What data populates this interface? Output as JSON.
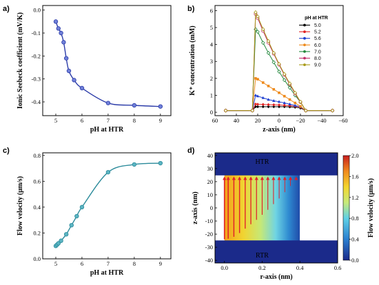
{
  "panels": {
    "a": "a)",
    "b": "b)",
    "c": "c)",
    "d": "d)"
  },
  "chart_data": [
    {
      "id": "a",
      "type": "line",
      "xlabel": "pH at HTR",
      "ylabel": "Ionic Seebeck coefficient (mV/K)",
      "xlim": [
        4.5,
        9.4
      ],
      "ylim": [
        -0.46,
        0.02
      ],
      "xticks": [
        5,
        6,
        7,
        8,
        9
      ],
      "yticks": [
        0.0,
        -0.1,
        -0.2,
        -0.3,
        -0.4
      ],
      "ytick_labels": [
        "0.0",
        "-0.1",
        "-0.2",
        "-0.3",
        "-0.4"
      ],
      "color": "#2b3ba8",
      "x": [
        5.0,
        5.1,
        5.2,
        5.3,
        5.4,
        5.5,
        5.7,
        6.0,
        7.0,
        8.0,
        9.0
      ],
      "y": [
        -0.05,
        -0.08,
        -0.1,
        -0.14,
        -0.21,
        -0.265,
        -0.305,
        -0.34,
        -0.405,
        -0.415,
        -0.42
      ]
    },
    {
      "id": "b",
      "type": "line",
      "xlabel": "z-axis (nm)",
      "ylabel": "K⁺ concentration (mM)",
      "xlim": [
        60,
        -60
      ],
      "ylim": [
        -0.2,
        6.3
      ],
      "xticks": [
        60,
        40,
        20,
        0,
        -20,
        -40,
        -60
      ],
      "xtick_labels": [
        "60",
        "40",
        "20",
        "0",
        "−20",
        "−40",
        "−60"
      ],
      "yticks": [
        0,
        1,
        2,
        3,
        4,
        5,
        6
      ],
      "legend_title": "pH at HTR",
      "legend_position": "top-right",
      "series": [
        {
          "name": "5.0",
          "color": "#000000",
          "x": [
            50,
            25,
            22,
            20,
            15,
            10,
            5,
            0,
            -5,
            -10,
            -15,
            -20,
            -25,
            -50
          ],
          "y": [
            0.1,
            0.1,
            0.33,
            0.33,
            0.33,
            0.33,
            0.33,
            0.33,
            0.33,
            0.32,
            0.3,
            0.25,
            0.1,
            0.1
          ]
        },
        {
          "name": "5.2",
          "color": "#e02020",
          "x": [
            50,
            25,
            22,
            20,
            15,
            10,
            5,
            0,
            -5,
            -10,
            -15,
            -20,
            -25,
            -50
          ],
          "y": [
            0.1,
            0.1,
            0.48,
            0.47,
            0.46,
            0.45,
            0.44,
            0.43,
            0.41,
            0.39,
            0.36,
            0.3,
            0.1,
            0.1
          ]
        },
        {
          "name": "5.6",
          "color": "#1f3fd0",
          "x": [
            50,
            25,
            22,
            20,
            15,
            10,
            5,
            0,
            -5,
            -10,
            -15,
            -20,
            -25,
            -50
          ],
          "y": [
            0.1,
            0.1,
            1.0,
            0.95,
            0.85,
            0.75,
            0.68,
            0.62,
            0.55,
            0.48,
            0.4,
            0.32,
            0.1,
            0.1
          ]
        },
        {
          "name": "6.0",
          "color": "#ee8a1c",
          "x": [
            50,
            25,
            22,
            20,
            15,
            10,
            5,
            0,
            -5,
            -10,
            -15,
            -20,
            -25,
            -50
          ],
          "y": [
            0.1,
            0.1,
            2.0,
            1.95,
            1.75,
            1.55,
            1.35,
            1.15,
            0.95,
            0.75,
            0.55,
            0.35,
            0.1,
            0.1
          ]
        },
        {
          "name": "7.0",
          "color": "#23883c",
          "x": [
            50,
            25,
            22,
            20,
            15,
            10,
            5,
            0,
            -5,
            -10,
            -15,
            -20,
            -25,
            -50
          ],
          "y": [
            0.1,
            0.1,
            4.9,
            4.75,
            4.1,
            3.5,
            2.95,
            2.4,
            1.9,
            1.45,
            1.0,
            0.6,
            0.1,
            0.1
          ]
        },
        {
          "name": "8.0",
          "color": "#c0306a",
          "x": [
            50,
            25,
            22,
            20,
            15,
            10,
            5,
            0,
            -5,
            -10,
            -15,
            -20,
            -25,
            -50
          ],
          "y": [
            0.1,
            0.1,
            5.8,
            5.55,
            4.8,
            4.1,
            3.45,
            2.8,
            2.2,
            1.65,
            1.1,
            0.6,
            0.1,
            0.1
          ]
        },
        {
          "name": "9.0",
          "color": "#a89a18",
          "x": [
            50,
            25,
            22,
            20,
            15,
            10,
            5,
            0,
            -5,
            -10,
            -15,
            -20,
            -25,
            -50
          ],
          "y": [
            0.1,
            0.1,
            5.9,
            5.65,
            4.9,
            4.2,
            3.5,
            2.85,
            2.25,
            1.7,
            1.15,
            0.62,
            0.1,
            0.1
          ]
        }
      ]
    },
    {
      "id": "c",
      "type": "line",
      "xlabel": "pH at HTR",
      "ylabel": "Flow velocity (μm/s)",
      "xlim": [
        4.5,
        9.4
      ],
      "ylim": [
        0.0,
        0.82
      ],
      "xticks": [
        5,
        6,
        7,
        8,
        9
      ],
      "yticks": [
        0.0,
        0.2,
        0.4,
        0.6,
        0.8
      ],
      "ytick_labels": [
        "0.0",
        "0.2",
        "0.4",
        "0.6",
        "0.8"
      ],
      "color": "#2a8a9a",
      "x": [
        5.0,
        5.05,
        5.1,
        5.2,
        5.4,
        5.6,
        5.8,
        6.0,
        7.0,
        8.0,
        9.0
      ],
      "y": [
        0.1,
        0.11,
        0.12,
        0.14,
        0.19,
        0.26,
        0.33,
        0.4,
        0.67,
        0.73,
        0.74
      ]
    },
    {
      "id": "d",
      "type": "heatmap",
      "xlabel": "r-axis (nm)",
      "ylabel": "z-axis (nm)",
      "xlim": [
        -0.05,
        0.6
      ],
      "ylim": [
        -42,
        42
      ],
      "xticks": [
        0.0,
        0.2,
        0.4,
        0.6
      ],
      "xtick_labels": [
        "0.0",
        "0.2",
        "0.4",
        "0.6"
      ],
      "yticks": [
        40,
        30,
        20,
        10,
        0,
        -10,
        -20,
        -30,
        -40
      ],
      "colorbar_label": "Flow velocity (μm/s)",
      "colorbar_range": [
        0.0,
        2.0
      ],
      "colorbar_ticks": [
        "2.0",
        "1.6",
        "1.2",
        "0.8",
        "0.4",
        "0.0"
      ],
      "top_region": "HTR",
      "bottom_region": "RTR",
      "channel_z": [
        -25,
        25
      ],
      "channel_r_max": 0.4,
      "arrow_color": "#e0202a",
      "arrows_r": [
        0.0,
        0.02,
        0.05,
        0.08,
        0.11,
        0.14,
        0.17,
        0.2,
        0.23,
        0.26,
        0.29,
        0.32,
        0.35,
        0.38
      ],
      "arrows_len": [
        1.0,
        0.99,
        0.96,
        0.9,
        0.83,
        0.76,
        0.69,
        0.61,
        0.53,
        0.44,
        0.35,
        0.25,
        0.15,
        0.06
      ]
    }
  ]
}
